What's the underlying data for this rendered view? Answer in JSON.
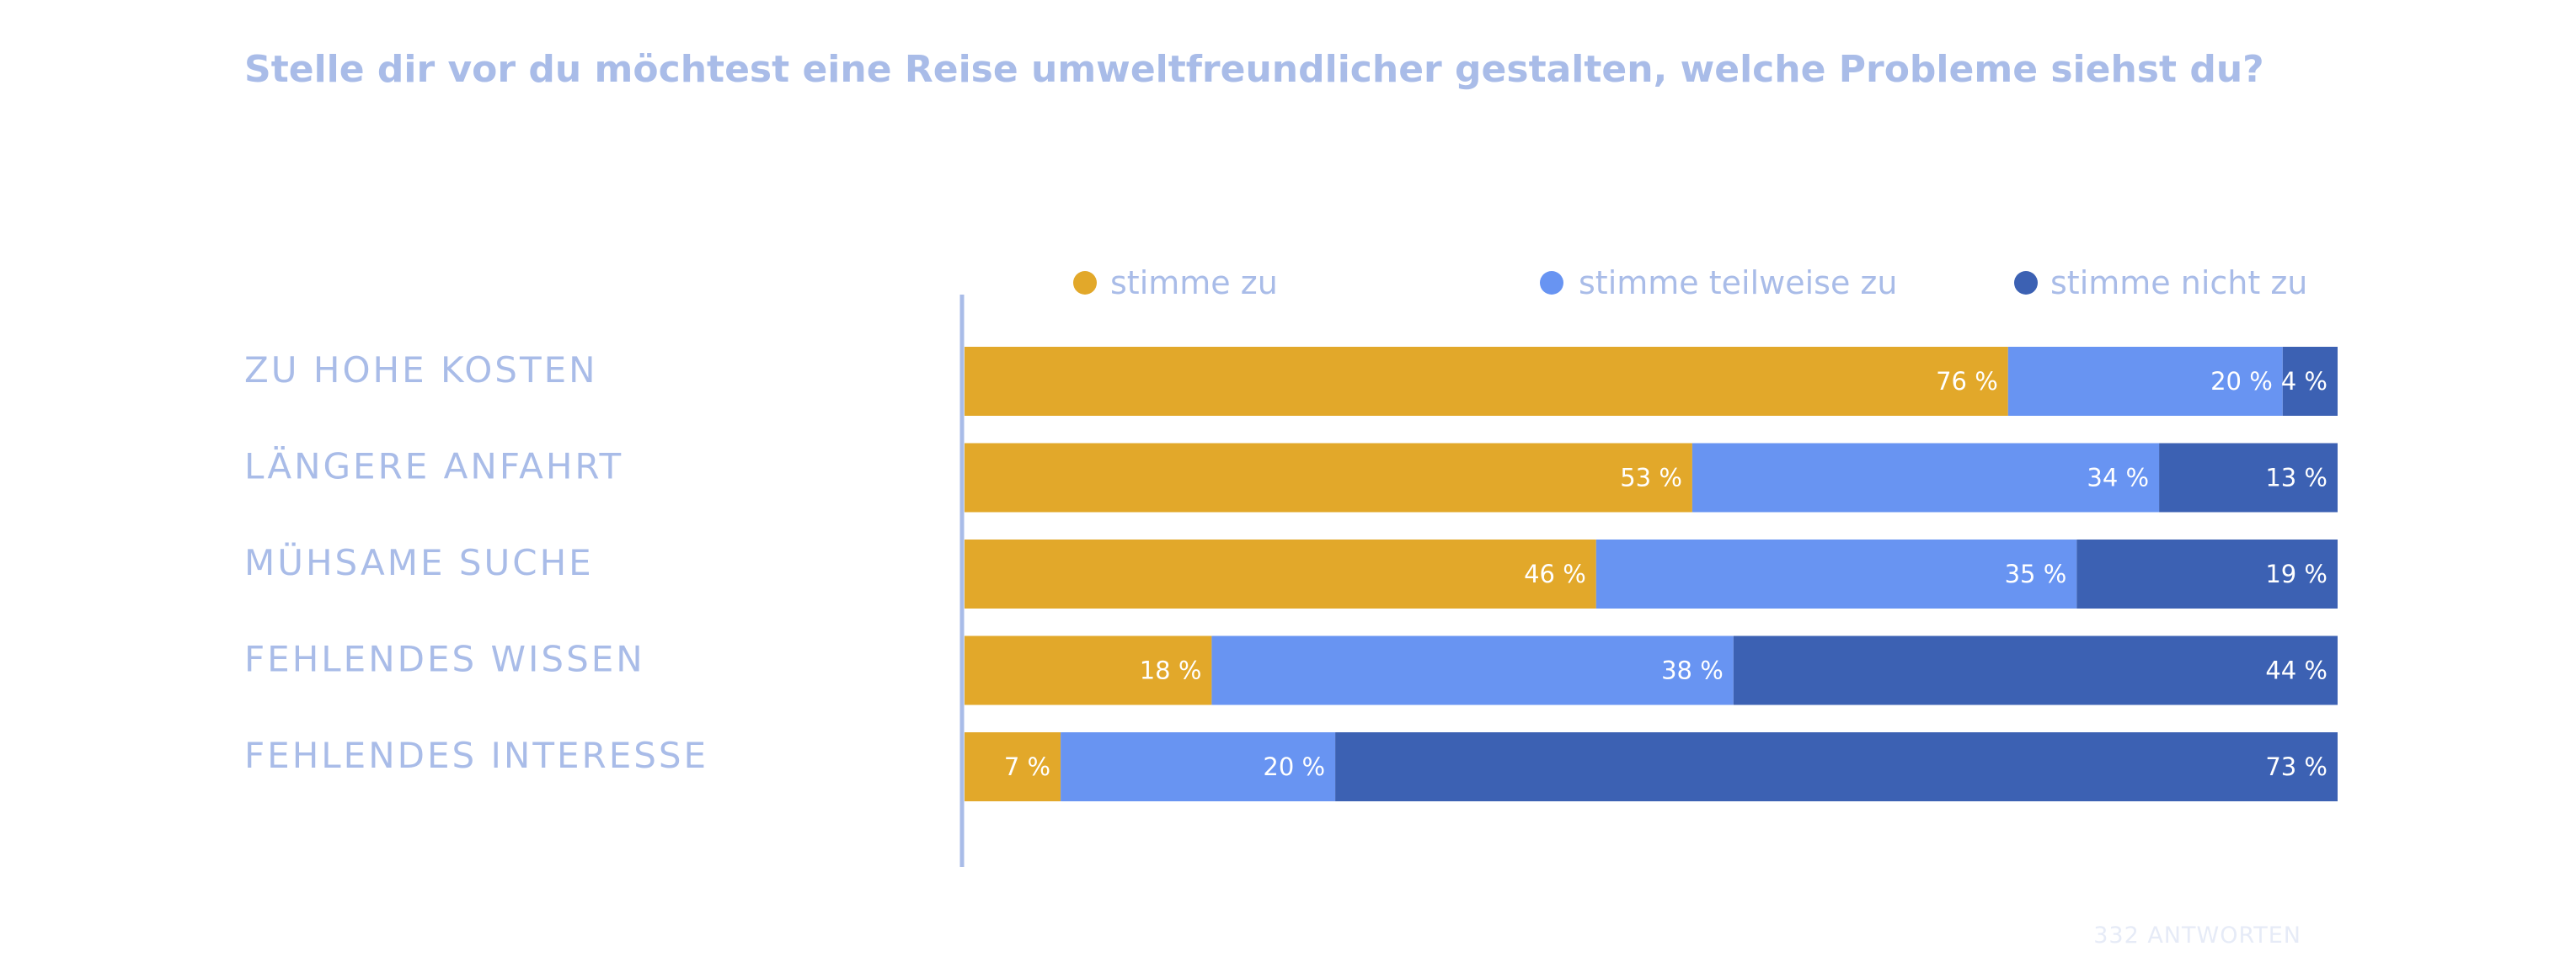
{
  "chart_data": {
    "type": "bar",
    "orientation": "horizontal",
    "stacked": true,
    "title": "Stelle dir vor du möchtest eine Reise umweltfreundlicher gestalten, welche Probleme siehst du?",
    "categories": [
      "ZU HOHE KOSTEN",
      "LÄNGERE ANFAHRT",
      "MÜHSAME SUCHE",
      "FEHLENDES WISSEN",
      "FEHLENDES INTERESSE"
    ],
    "series": [
      {
        "name": "stimme zu",
        "color": "#e2a82a",
        "values": [
          76,
          53,
          46,
          18,
          7
        ],
        "labels": [
          "76 %",
          "53 %",
          "46 %",
          "18 %",
          "7 %"
        ]
      },
      {
        "name": "stimme teilweise zu",
        "color": "#6894f2",
        "values": [
          20,
          34,
          35,
          38,
          20
        ],
        "labels": [
          "20 %",
          "34 %",
          "35 %",
          "38 %",
          "20 %"
        ]
      },
      {
        "name": "stimme nicht zu",
        "color": "#3c61b3",
        "values": [
          4,
          13,
          19,
          44,
          73
        ],
        "labels": [
          "4 %",
          "13 %",
          "19 %",
          "44 %",
          "73 %"
        ]
      }
    ],
    "xlim": [
      0,
      100
    ],
    "legend_position": "top",
    "grid": false,
    "note": "332 ANTWORTEN"
  }
}
